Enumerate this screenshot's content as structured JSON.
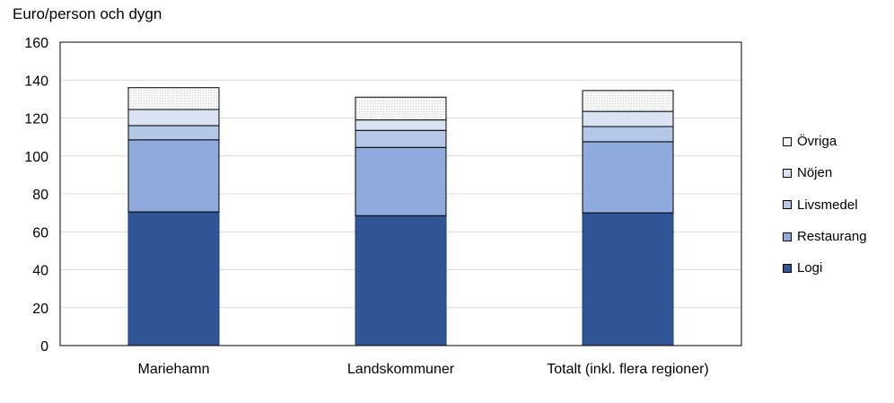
{
  "chart_data": {
    "type": "bar",
    "stacked": true,
    "ylabel": "Euro/person och dygn",
    "xlabel": "",
    "title": "",
    "ylim": [
      0,
      160
    ],
    "yticks": [
      0,
      20,
      40,
      60,
      80,
      100,
      120,
      140,
      160
    ],
    "grid": true,
    "legend_position": "right",
    "categories": [
      "Mariehamn",
      "Landskommuner",
      "Totalt (inkl. flera regioner)"
    ],
    "series": [
      {
        "name": "Logi",
        "color": "#2F5597",
        "values": [
          70.5,
          68.5,
          70
        ]
      },
      {
        "name": "Restaurang",
        "color": "#8FAADC",
        "values": [
          38,
          36,
          37.5
        ]
      },
      {
        "name": "Livsmedel",
        "color": "#B4C7E7",
        "values": [
          7.5,
          9,
          8
        ]
      },
      {
        "name": "Nöjen",
        "color": "#DAE3F3",
        "values": [
          8.5,
          5.5,
          8
        ]
      },
      {
        "name": "Övriga",
        "color": "#F4F4F4",
        "values": [
          11.5,
          12,
          11
        ]
      }
    ]
  }
}
